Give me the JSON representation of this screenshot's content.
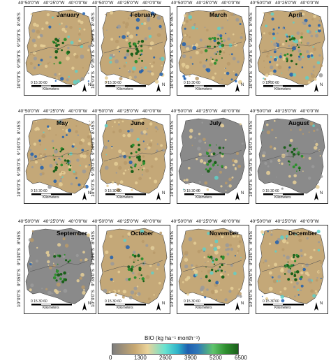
{
  "months": [
    "January",
    "February",
    "March",
    "April",
    "May",
    "June",
    "July",
    "August",
    "September",
    "October",
    "November",
    "December"
  ],
  "lon_labels": [
    "40°50'0\"W",
    "40°25'0\"W",
    "40°0'0\"W"
  ],
  "lat_labels": [
    "8°45'S",
    "9°10'0\"S",
    "9°35'0\"S",
    "10°0'0\"S"
  ],
  "scale_numbers": "0   15  30        60",
  "scale_unit": "Kilometers",
  "north_label": "N",
  "legend": {
    "title": "BIO (kg ha⁻¹ month⁻¹)",
    "ticks": [
      "0",
      "1300",
      "2600",
      "3900",
      "5200",
      "6500"
    ],
    "colors": {
      "low": "#7d7d7d",
      "mid_low": "#ead39a",
      "mid": "#2fb3c9",
      "mid_high": "#1f5fb0",
      "high": "#1a5f1a"
    }
  }
}
